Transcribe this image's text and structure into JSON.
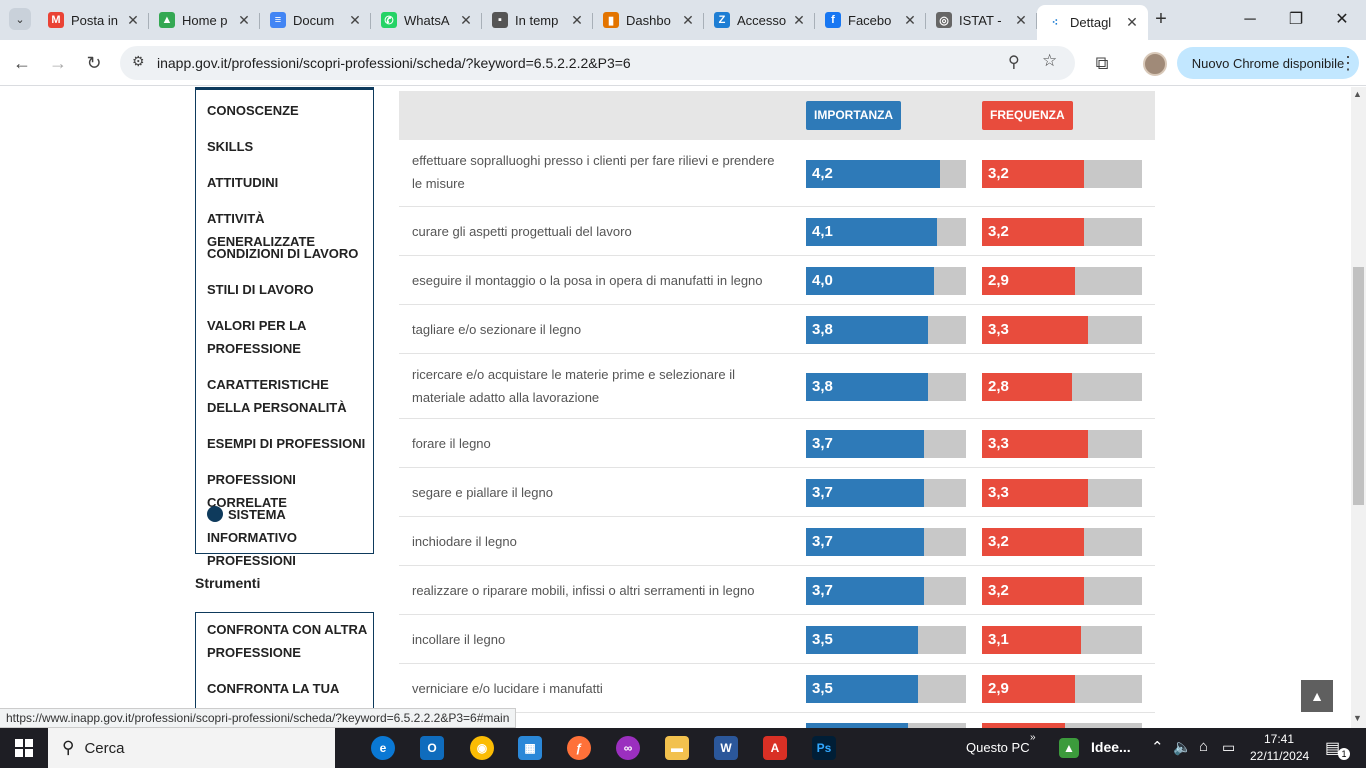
{
  "browser": {
    "tabs": [
      {
        "label": "Posta in",
        "icon": "gmail-icon",
        "color": "#ea4335",
        "glyph": "M"
      },
      {
        "label": "Home p",
        "icon": "drive-icon",
        "color": "#34a853",
        "glyph": "▲"
      },
      {
        "label": "Docum",
        "icon": "docs-icon",
        "color": "#4285f4",
        "glyph": "≡"
      },
      {
        "label": "WhatsA",
        "icon": "whatsapp-icon",
        "color": "#25d366",
        "glyph": "✆"
      },
      {
        "label": "In temp",
        "icon": "page-icon",
        "color": "#555555",
        "glyph": "▪"
      },
      {
        "label": "Dashbo",
        "icon": "dashboard-icon",
        "color": "#e37400",
        "glyph": "▮"
      },
      {
        "label": "Accesso",
        "icon": "zoho-icon",
        "color": "#1e7ed4",
        "glyph": "Z"
      },
      {
        "label": "Facebo",
        "icon": "facebook-icon",
        "color": "#1877f2",
        "glyph": "f"
      },
      {
        "label": "ISTAT -",
        "icon": "globe-icon",
        "color": "#666666",
        "glyph": "◎"
      },
      {
        "label": "Dettagl",
        "icon": "inapp-icon",
        "color": "#ffffff",
        "glyph": "⁖",
        "active": true
      }
    ],
    "url": "inapp.gov.it/professioni/scopri-professioni/scheda/?keyword=6.5.2.2.2&P3=6",
    "chrome_update_label": "Nuovo Chrome disponibile"
  },
  "sidebar": {
    "items": [
      "CONOSCENZE",
      "SKILLS",
      "ATTITUDINI",
      "ATTIVITÀ GENERALIZZATE",
      "CONDIZIONI DI LAVORO",
      "STILI DI LAVORO",
      "VALORI PER LA PROFESSIONE",
      "CARATTERISTICHE DELLA PERSONALITÀ",
      "ESEMPI DI PROFESSIONI",
      "PROFESSIONI CORRELATE",
      "SISTEMA INFORMATIVO PROFESSIONI"
    ]
  },
  "tools": {
    "title": "Strumenti",
    "items": [
      "CONFRONTA CON ALTRA PROFESSIONE",
      "CONFRONTA LA TUA"
    ]
  },
  "table": {
    "header_importanza": "IMPORTANZA",
    "header_frequenza": "FREQUENZA",
    "colors": {
      "importanza": "#2e7ab8",
      "frequenza": "#e84c3d",
      "empty": "#c8c8c8"
    },
    "scale_max": 5,
    "rows": [
      {
        "label": "effettuare sopralluoghi presso i clienti per fare rilievi e prendere le misure",
        "importanza": "4,2",
        "frequenza": "3,2"
      },
      {
        "label": "curare gli aspetti progettuali del lavoro",
        "importanza": "4,1",
        "frequenza": "3,2"
      },
      {
        "label": "eseguire il montaggio o la posa in opera di manufatti in legno",
        "importanza": "4,0",
        "frequenza": "2,9"
      },
      {
        "label": "tagliare e/o sezionare il legno",
        "importanza": "3,8",
        "frequenza": "3,3"
      },
      {
        "label": "ricercare e/o acquistare le materie prime e selezionare il materiale adatto alla lavorazione",
        "importanza": "3,8",
        "frequenza": "2,8"
      },
      {
        "label": "forare il legno",
        "importanza": "3,7",
        "frequenza": "3,3"
      },
      {
        "label": "segare e piallare il legno",
        "importanza": "3,7",
        "frequenza": "3,3"
      },
      {
        "label": "inchiodare il legno",
        "importanza": "3,7",
        "frequenza": "3,2"
      },
      {
        "label": "realizzare o riparare mobili, infissi o altri serramenti in legno",
        "importanza": "3,7",
        "frequenza": "3,2"
      },
      {
        "label": "incollare il legno",
        "importanza": "3,5",
        "frequenza": "3,1"
      },
      {
        "label": "verniciare e/o lucidare i manufatti",
        "importanza": "3,5",
        "frequenza": "2,9"
      }
    ]
  },
  "status_url": "https://www.inapp.gov.it/professioni/scopri-professioni/scheda/?keyword=6.5.2.2.2&P3=6#main",
  "taskbar": {
    "search_label": "Cerca",
    "questo_pc": "Questo PC",
    "idee": "Idee...",
    "time": "17:41",
    "date": "22/11/2024",
    "notif_count": "1"
  }
}
